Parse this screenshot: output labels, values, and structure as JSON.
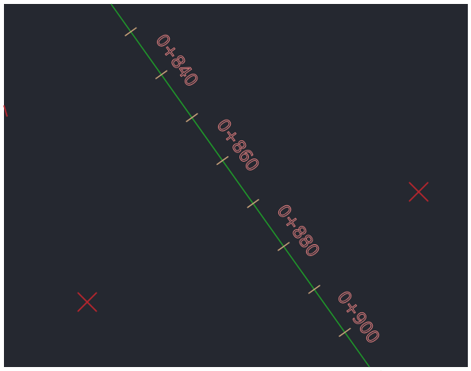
{
  "stations": [
    {
      "label": "0+840"
    },
    {
      "label": "0+860"
    },
    {
      "label": "0+880"
    },
    {
      "label": "0+900"
    }
  ]
}
